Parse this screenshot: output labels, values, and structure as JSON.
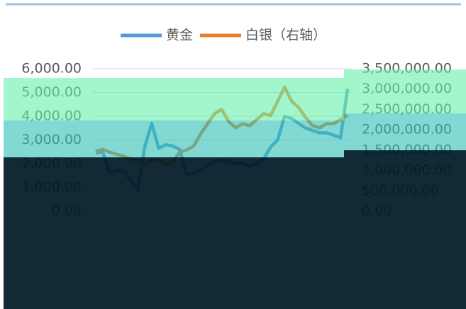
{
  "chart_data": {
    "type": "line",
    "categories": [
      null,
      null,
      null,
      null,
      null,
      null,
      null,
      null,
      null,
      null,
      null,
      null,
      null,
      null,
      null,
      null,
      null,
      null,
      null,
      null,
      null,
      null,
      null,
      null,
      null,
      null,
      null,
      null,
      null,
      null,
      null,
      null,
      null,
      null,
      null,
      null,
      null
    ],
    "series": [
      {
        "name": "黄金",
        "color": "#5b9bd5",
        "values": [
          2450,
          2500,
          1600,
          1700,
          1700,
          1300,
          850,
          2700,
          3700,
          2650,
          2800,
          2750,
          2600,
          1550,
          1600,
          1700,
          1900,
          2100,
          2150,
          2100,
          2000,
          2000,
          1900,
          2000,
          2200,
          2700,
          3000,
          4000,
          3900,
          3700,
          3500,
          3400,
          3300,
          3300,
          3200,
          3100,
          5150
        ]
      },
      {
        "name": "白银（右轴）",
        "color": "#ed7d31",
        "axis": "y2",
        "values": [
          1470000,
          1520000,
          1450000,
          1400000,
          1350000,
          1280000,
          1250000,
          1150000,
          1250000,
          1280000,
          1150000,
          1200000,
          1450000,
          1500000,
          1600000,
          1900000,
          2150000,
          2400000,
          2500000,
          2200000,
          2050000,
          2150000,
          2100000,
          2250000,
          2400000,
          2350000,
          2700000,
          3050000,
          2700000,
          2550000,
          2300000,
          2100000,
          2050000,
          2150000,
          2150000,
          2250000,
          2350000
        ]
      }
    ],
    "ylim": [
      0,
      6000
    ],
    "yticks": [
      {
        "value": 0,
        "label": "0.00"
      },
      {
        "value": 1000,
        "label": "1,000.00"
      },
      {
        "value": 2000,
        "label": "2,000.00"
      },
      {
        "value": 3000,
        "label": "3,000.00"
      },
      {
        "value": 4000,
        "label": "4,000.00"
      },
      {
        "value": 5000,
        "label": "5,000.00"
      },
      {
        "value": 6000,
        "label": "6,000.00"
      }
    ],
    "y2lim": [
      0,
      3500000
    ],
    "y2ticks": [
      {
        "value": 0,
        "label": "0.00"
      },
      {
        "value": 500000,
        "label": "500,000.00"
      },
      {
        "value": 1000000,
        "label": "1,000,000.00"
      },
      {
        "value": 1500000,
        "label": "1,500,000.00"
      },
      {
        "value": 2000000,
        "label": "2,000,000.00"
      },
      {
        "value": 2500000,
        "label": "2,500,000.00"
      },
      {
        "value": 3000000,
        "label": "3,000,000.00"
      },
      {
        "value": 3500000,
        "label": "3,500,000.00"
      }
    ],
    "grid": true,
    "legend": "top"
  }
}
